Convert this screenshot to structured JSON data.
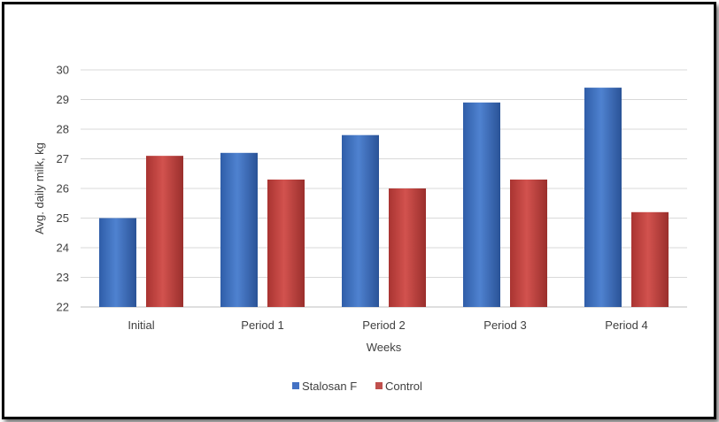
{
  "chart_data": {
    "type": "bar",
    "categories": [
      "Initial",
      "Period 1",
      "Period 2",
      "Period 3",
      "Period 4"
    ],
    "series": [
      {
        "name": "Stalosan F",
        "values": [
          25.0,
          27.2,
          27.8,
          28.9,
          29.4
        ],
        "color": "#4472c4"
      },
      {
        "name": "Control",
        "values": [
          27.1,
          26.3,
          26.0,
          26.3,
          25.2
        ],
        "color": "#c0504d"
      }
    ],
    "title": "",
    "xlabel": "Weeks",
    "ylabel": "Avg. daily milk, kg",
    "ylim": [
      22,
      30
    ],
    "yticks": [
      "22",
      "23",
      "24",
      "25",
      "26",
      "27",
      "28",
      "29",
      "30"
    ],
    "grid": true,
    "legend_position": "bottom"
  }
}
